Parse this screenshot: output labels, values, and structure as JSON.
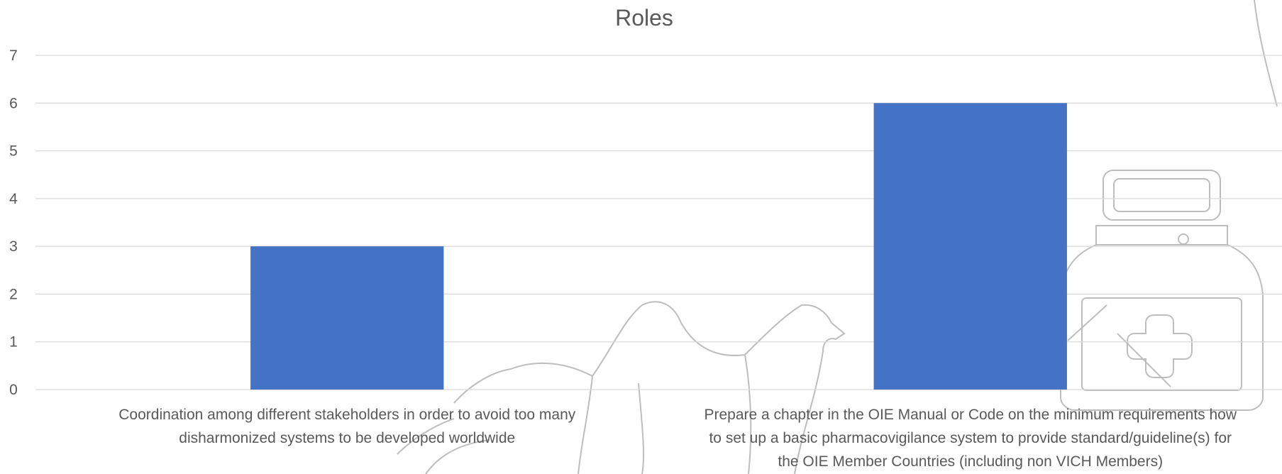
{
  "chart_data": {
    "type": "bar",
    "title": "Roles",
    "xlabel": "",
    "ylabel": "",
    "ylim": [
      0,
      7
    ],
    "yticks": [
      0,
      1,
      2,
      3,
      4,
      5,
      6,
      7
    ],
    "grid": true,
    "legend": "none",
    "categories": [
      [
        "Coordination among different stakeholders in order to avoid too many",
        "disharmonized systems to be developed worldwide"
      ],
      [
        "Prepare a chapter in the OIE Manual or Code on the minimum requirements how",
        "to set up a basic pharmacovigilance system to provide standard/guideline(s) for",
        "the OIE Member Countries (including non VICH Members)"
      ]
    ],
    "values": [
      3,
      6
    ],
    "bar_color": "#4472C4",
    "gridline_color": "#D9D9D9",
    "text_color": "#595959",
    "watermark_icons": [
      "camel-outline-icon",
      "medicine-bottle-outline-icon"
    ]
  }
}
